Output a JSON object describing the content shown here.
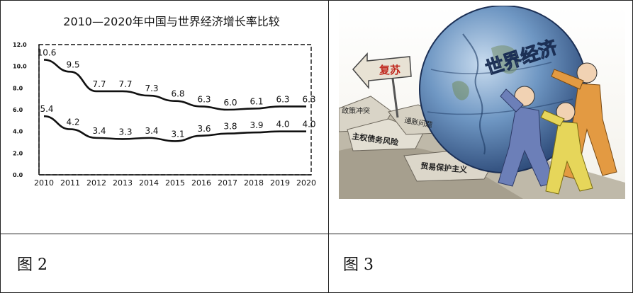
{
  "chart_data": {
    "type": "line",
    "title": "2010—2020年中国与世界经济增长率比较",
    "x": [
      "2010",
      "2011",
      "2012",
      "2013",
      "2014",
      "2015",
      "2016",
      "2017",
      "2018",
      "2019",
      "2020"
    ],
    "y_ticks": [
      "12.0",
      "10.0",
      "8.0",
      "6.0",
      "4.0",
      "2.0",
      "0.0"
    ],
    "ylim": [
      0,
      12
    ],
    "grid": false,
    "series": [
      {
        "values": [
          10.6,
          9.5,
          7.7,
          7.7,
          7.3,
          6.8,
          6.3,
          6.0,
          6.1,
          6.3,
          6.3
        ],
        "labels": [
          "10.6",
          "9.5",
          "7.7",
          "7.7",
          "7.3",
          "6.8",
          "6.3",
          "6.0",
          "6.1",
          "6.3",
          "6.3"
        ]
      },
      {
        "values": [
          5.4,
          4.2,
          3.4,
          3.3,
          3.4,
          3.1,
          3.6,
          3.8,
          3.9,
          4.0,
          4.0
        ],
        "labels": [
          "5.4",
          "4.2",
          "3.4",
          "3.3",
          "3.4",
          "3.1",
          "3.6",
          "3.8",
          "3.9",
          "4.0",
          "4.0"
        ]
      }
    ]
  },
  "captions": {
    "left": "图 2",
    "right": "图 3"
  },
  "cartoon": {
    "globe_text": "世界经济",
    "sign_text": "复苏",
    "rock_labels": [
      "政策冲突",
      "主权债务风险",
      "通胀问题",
      "贸易保护主义"
    ]
  }
}
